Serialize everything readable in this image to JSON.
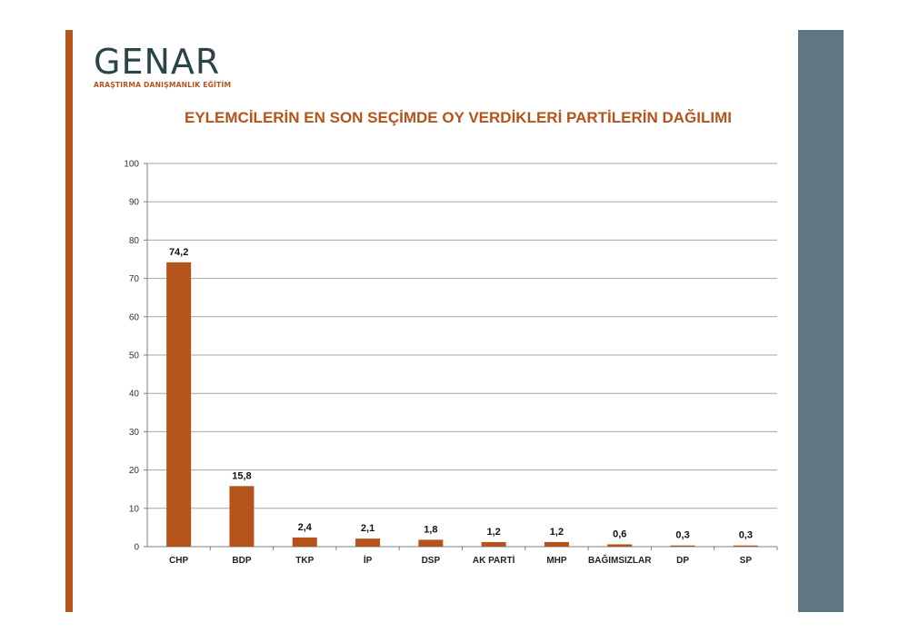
{
  "logo": {
    "name": "GENAR",
    "tagline": "ARAŞTIRMA DANIŞMANLIK EĞİTİM"
  },
  "colors": {
    "accent": "#b5531c",
    "side_panel": "#5f7683",
    "grid": "#a6a6a6"
  },
  "chart_data": {
    "type": "bar",
    "title": "EYLEMCİLERİN EN SON SEÇİMDE OY VERDİKLERİ PARTİLERİN DAĞILIMI",
    "xlabel": "",
    "ylabel": "",
    "ylim": [
      0,
      100
    ],
    "yticks": [
      0,
      10,
      20,
      30,
      40,
      50,
      60,
      70,
      80,
      90,
      100
    ],
    "grid": true,
    "categories": [
      "CHP",
      "BDP",
      "TKP",
      "İP",
      "DSP",
      "AK PARTİ",
      "MHP",
      "BAĞIMSIZLAR",
      "DP",
      "SP"
    ],
    "values": [
      74.2,
      15.8,
      2.4,
      2.1,
      1.8,
      1.2,
      1.2,
      0.6,
      0.3,
      0.3
    ],
    "value_labels": [
      "74,2",
      "15,8",
      "2,4",
      "2,1",
      "1,8",
      "1,2",
      "1,2",
      "0,6",
      "0,3",
      "0,3"
    ],
    "bar_color": "#b5531c"
  }
}
